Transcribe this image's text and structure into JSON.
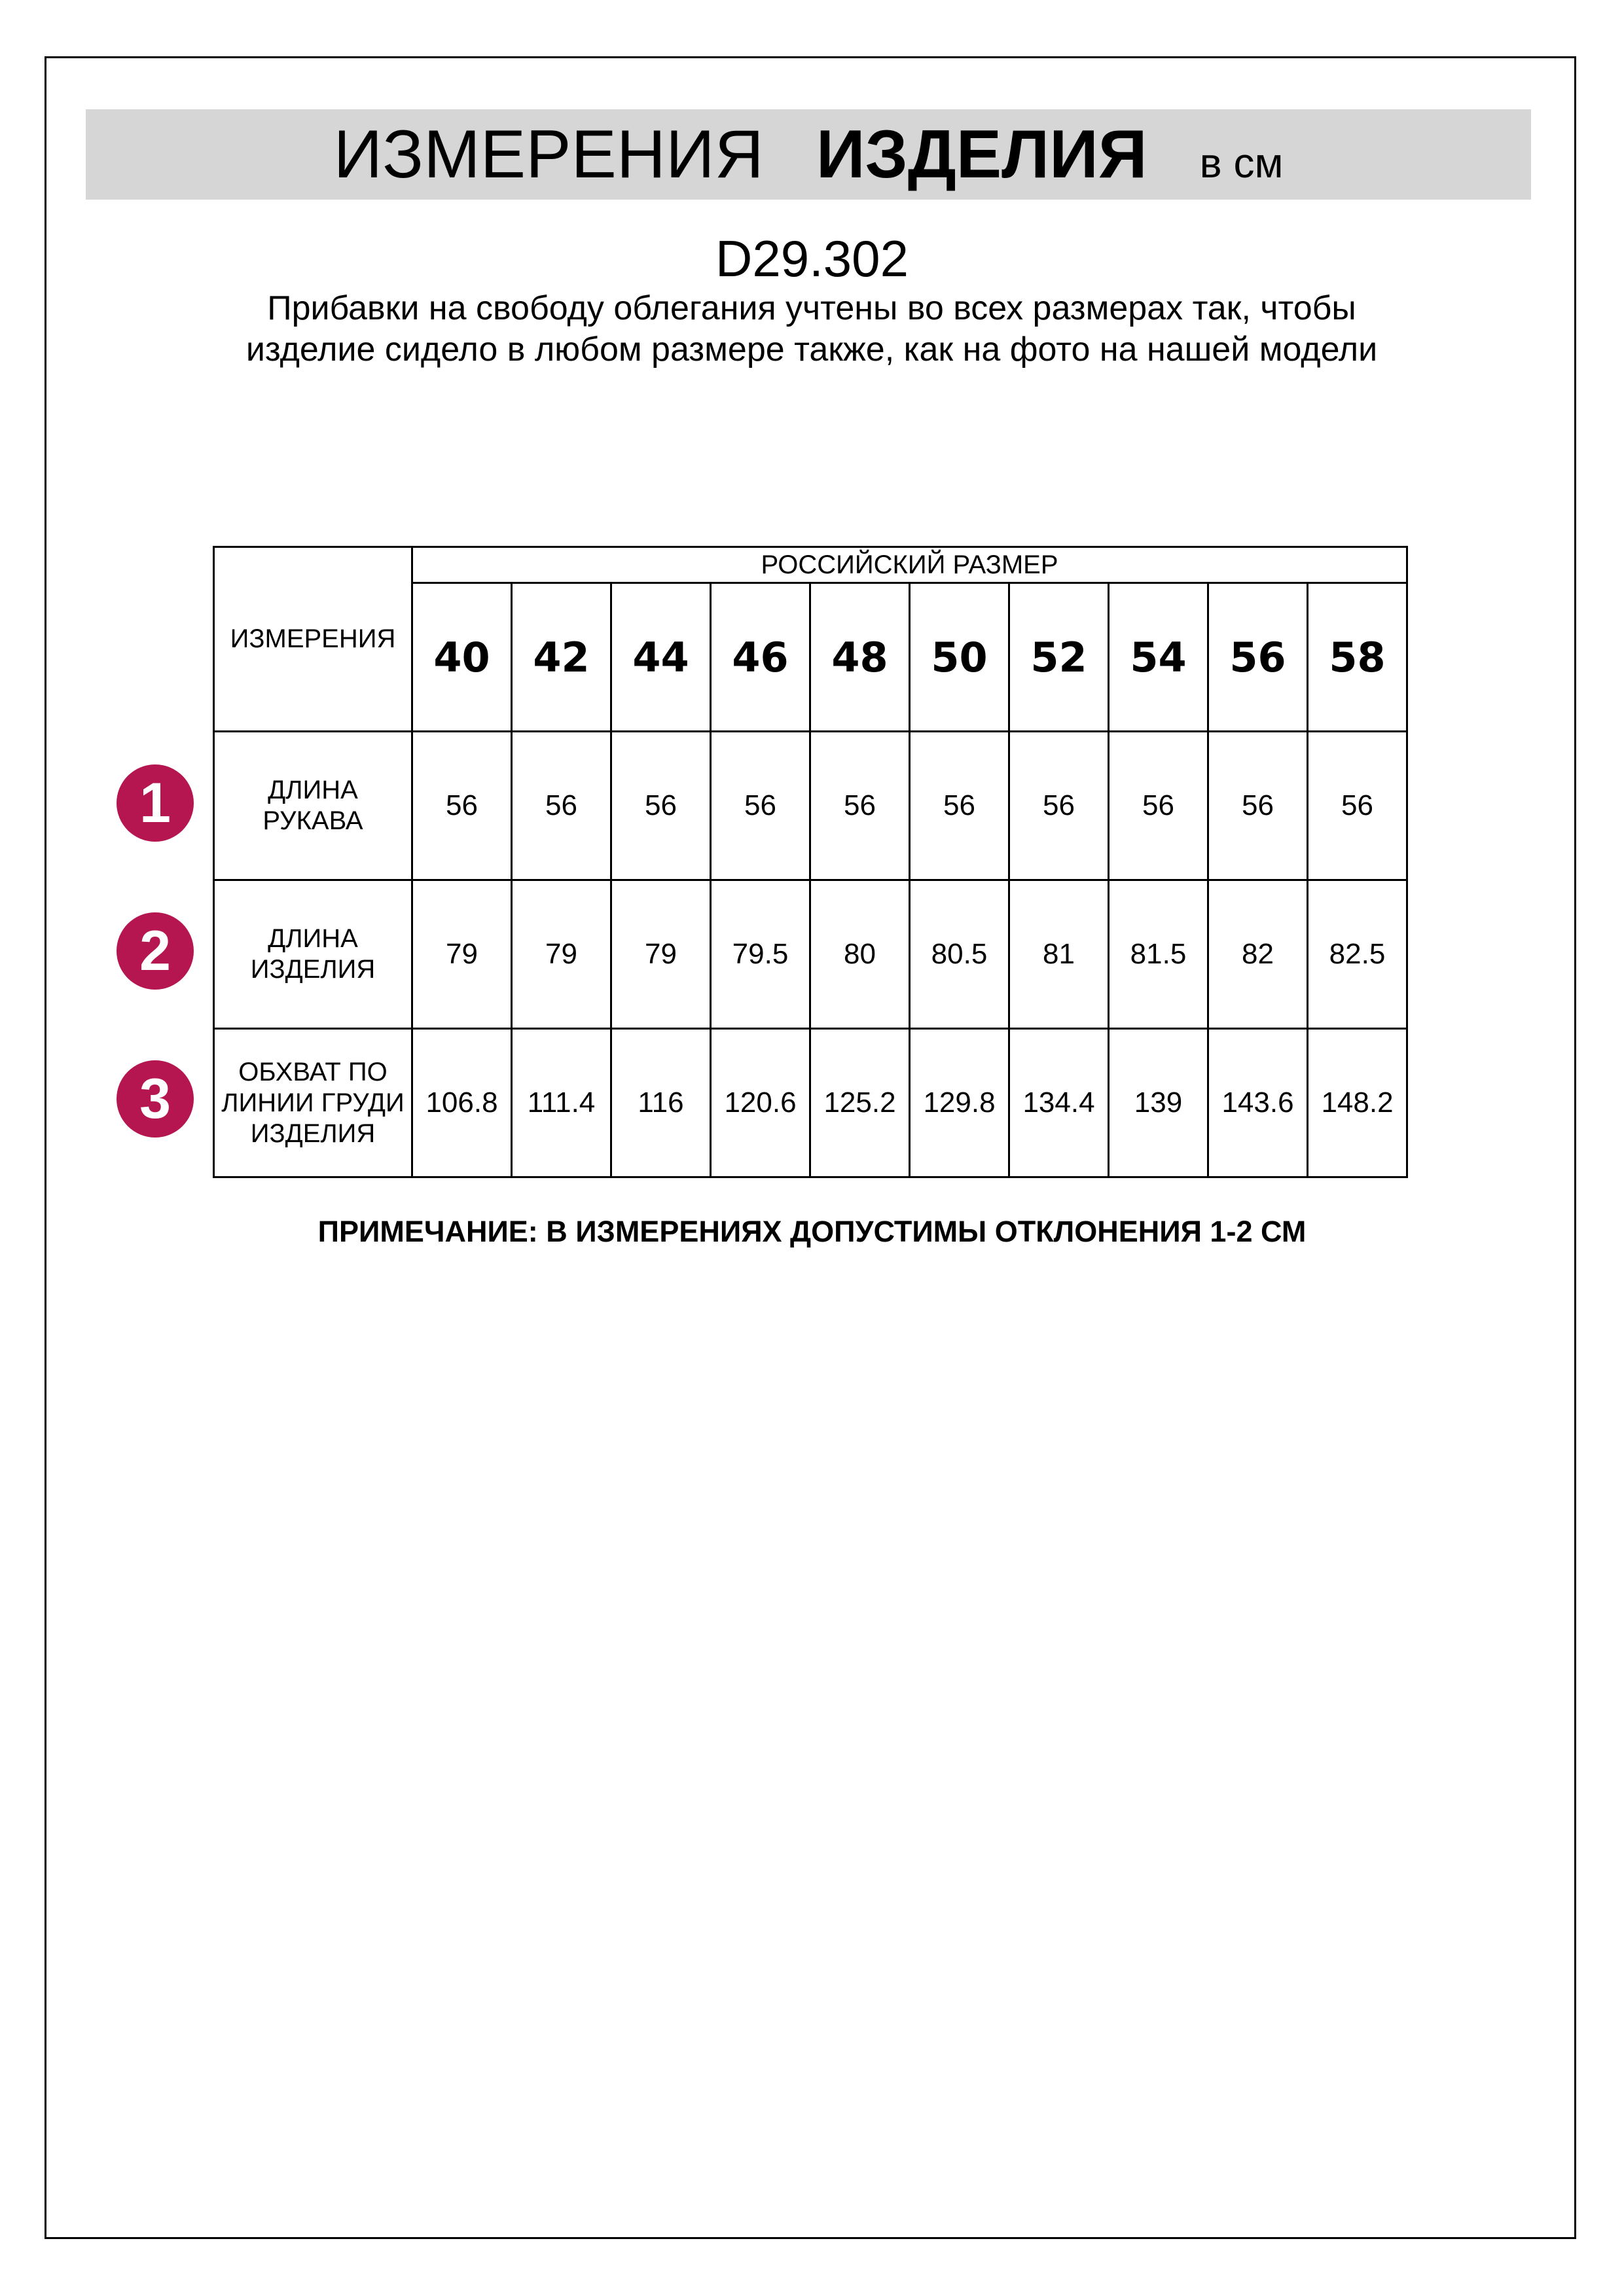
{
  "header": {
    "title_regular": "ИЗМЕРЕНИЯ",
    "title_bold": "ИЗДЕЛИЯ",
    "unit": "в см"
  },
  "product_code": "D29.302",
  "description": "Прибавки на свободу облегания учтены во всех размерах так, чтобы изделие сидело в любом размере также, как на фото на нашей модели",
  "table": {
    "measure_header": "ИЗМЕРЕНИЯ",
    "size_group_header": "РОССИЙСКИЙ РАЗМЕР",
    "sizes": [
      "40",
      "42",
      "44",
      "46",
      "48",
      "50",
      "52",
      "54",
      "56",
      "58"
    ],
    "rows": [
      {
        "number": "1",
        "label": "ДЛИНА РУКАВА",
        "values": [
          "56",
          "56",
          "56",
          "56",
          "56",
          "56",
          "56",
          "56",
          "56",
          "56"
        ]
      },
      {
        "number": "2",
        "label": "ДЛИНА ИЗДЕЛИЯ",
        "values": [
          "79",
          "79",
          "79",
          "79.5",
          "80",
          "80.5",
          "81",
          "81.5",
          "82",
          "82.5"
        ]
      },
      {
        "number": "3",
        "label": "ОБХВАТ ПО ЛИНИИ ГРУДИ ИЗДЕЛИЯ",
        "values": [
          "106.8",
          "111.4",
          "116",
          "120.6",
          "125.2",
          "129.8",
          "134.4",
          "139",
          "143.6",
          "148.2"
        ]
      }
    ]
  },
  "note": "ПРИМЕЧАНИЕ: В ИЗМЕРЕНИЯХ ДОПУСТИМЫ ОТКЛОНЕНИЯ 1-2 СМ",
  "colors": {
    "badge": "#b5164f",
    "band": "#d6d6d6"
  }
}
